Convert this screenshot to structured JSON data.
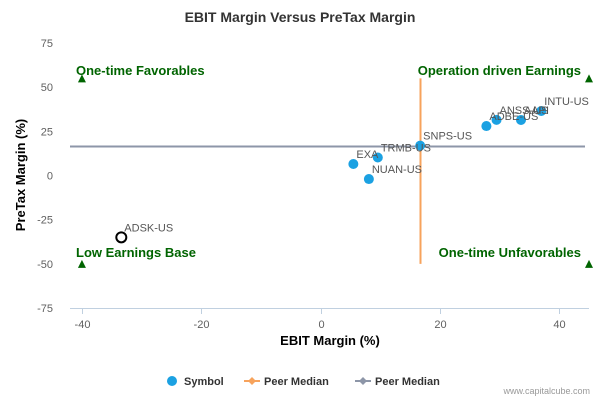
{
  "chart_data": {
    "type": "scatter",
    "title": "EBIT Margin Versus PreTax Margin",
    "xlabel": "EBIT Margin (%)",
    "ylabel": "PreTax Margin (%)",
    "xlim": [
      -42,
      45
    ],
    "ylim": [
      -75,
      75
    ],
    "x_ticks": [
      -40,
      -20,
      0,
      20,
      40
    ],
    "x_tick_labels": [
      "-40",
      "-20",
      "0",
      "20",
      "40"
    ],
    "y_ticks": [
      75,
      50,
      25,
      0,
      -25,
      -50,
      -75
    ],
    "y_tick_labels": [
      "75",
      "50",
      "25",
      "0",
      "-25",
      "-50",
      "-75"
    ],
    "grid": false,
    "points": [
      {
        "label": "ANSS-US",
        "x": 29.5,
        "y": 31.5,
        "color": "#1ba1e2"
      },
      {
        "label": "AAPI",
        "x": 33.6,
        "y": 31.4,
        "color": "#1ba1e2"
      },
      {
        "label": "INTU-US",
        "x": 37.0,
        "y": 36.5,
        "color": "#1ba1e2"
      },
      {
        "label": "ADBE-US",
        "x": 27.8,
        "y": 28.0,
        "color": "#1ba1e2"
      },
      {
        "label": "SNPS-US",
        "x": 16.7,
        "y": 16.9,
        "color": "#1ba1e2"
      },
      {
        "label": "TRMB-US",
        "x": 9.6,
        "y": 10.2,
        "color": "#1ba1e2"
      },
      {
        "label": "EXA",
        "x": 5.5,
        "y": 6.5,
        "color": "#1ba1e2"
      },
      {
        "label": "NUAN-US",
        "x": 8.1,
        "y": -2.0,
        "color": "#1ba1e2"
      },
      {
        "label": "ADSK-US",
        "x": -33.4,
        "y": -35.0,
        "color": "#ffffff",
        "outline": "#000000"
      }
    ],
    "peer_median_x": 16.7,
    "peer_median_y": 16.9,
    "peer_median_x_color": "#f7a35c",
    "peer_median_y_color": "#8d96a8",
    "quadrant_labels": {
      "top_left": "One-time Favorables",
      "top_right": "Operation driven Earnings",
      "bottom_left": "Low Earnings Base",
      "bottom_right": "One-time Unfavorables"
    },
    "quadrant_color": "#006400",
    "legend": {
      "position": "bottom-center",
      "items": [
        {
          "label": "Symbol",
          "kind": "dot",
          "color": "#1ba1e2"
        },
        {
          "label": "Peer Median",
          "kind": "line",
          "color": "#f7a35c"
        },
        {
          "label": "Peer Median",
          "kind": "line",
          "color": "#8d96a8"
        }
      ]
    }
  },
  "credit": "www.capitalcube.com"
}
